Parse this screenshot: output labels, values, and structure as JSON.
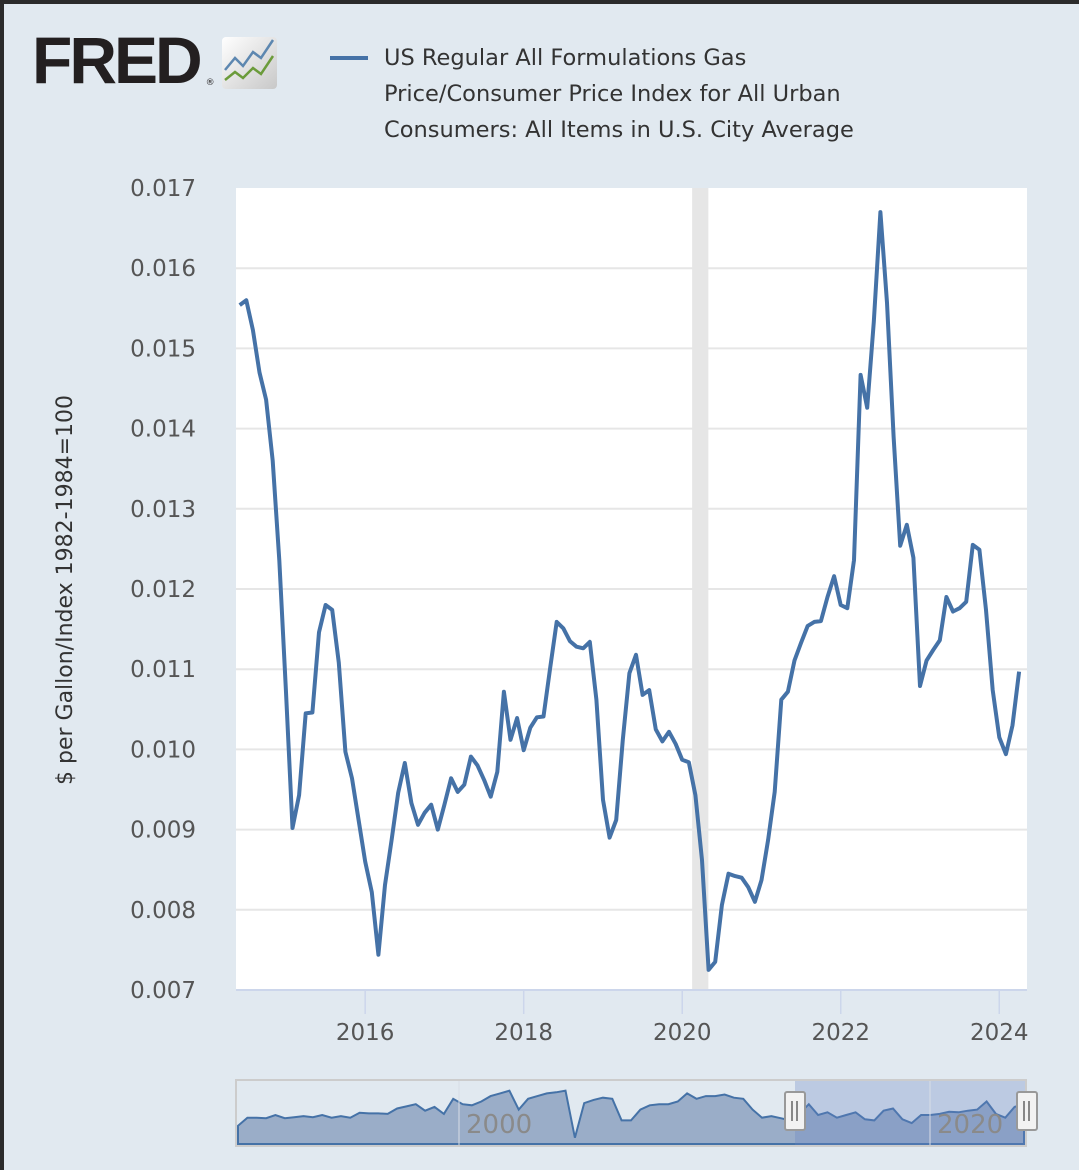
{
  "header": {
    "logo_text": "FRED",
    "logo_registered": "®",
    "logo_icon": "line-chart-icon"
  },
  "legend": {
    "series_label": "US Regular All Formulations Gas Price/Consumer Price Index for All Urban Consumers: All Items in U.S. City Average",
    "series_color": "#4572a7"
  },
  "chart_data": {
    "type": "line",
    "title": "",
    "xlabel": "",
    "ylabel": "$ per Gallon/Index 1982-1984=100",
    "ylim": [
      0.007,
      0.017
    ],
    "xlim": [
      2014.37,
      2024.35
    ],
    "yticks": [
      "0.007",
      "0.008",
      "0.009",
      "0.010",
      "0.011",
      "0.012",
      "0.013",
      "0.014",
      "0.015",
      "0.016",
      "0.017"
    ],
    "ytick_values": [
      0.007,
      0.008,
      0.009,
      0.01,
      0.011,
      0.012,
      0.013,
      0.014,
      0.015,
      0.016,
      0.017
    ],
    "xticks": [
      "2016",
      "2018",
      "2020",
      "2022",
      "2024"
    ],
    "xtick_values": [
      2016,
      2018,
      2020,
      2022,
      2024
    ],
    "grid": true,
    "recession_shading": [
      2020.125,
      2020.33
    ],
    "series": [
      {
        "name": "US Regular All Formulations Gas Price/Consumer Price Index for All Urban Consumers: All Items in U.S. City Average",
        "color": "#4572a7",
        "start": "2014-06",
        "frequency": "monthly",
        "values": [
          0.01554,
          0.0156,
          0.01523,
          0.0147,
          0.01436,
          0.0136,
          0.01236,
          0.01074,
          0.00902,
          0.00943,
          0.01045,
          0.01046,
          0.01146,
          0.0118,
          0.01174,
          0.01108,
          0.00997,
          0.00964,
          0.00912,
          0.0086,
          0.00822,
          0.00744,
          0.00831,
          0.00887,
          0.00946,
          0.00983,
          0.00933,
          0.00906,
          0.00921,
          0.00931,
          0.009,
          0.00931,
          0.00964,
          0.00947,
          0.00956,
          0.00991,
          0.0098,
          0.00962,
          0.00941,
          0.00972,
          0.01072,
          0.01012,
          0.01039,
          0.00999,
          0.01027,
          0.0104,
          0.01041,
          0.01101,
          0.01159,
          0.01151,
          0.01135,
          0.01128,
          0.01126,
          0.01134,
          0.01062,
          0.00937,
          0.0089,
          0.00912,
          0.01012,
          0.01095,
          0.01118,
          0.01068,
          0.01074,
          0.01025,
          0.0101,
          0.01022,
          0.01007,
          0.00987,
          0.00984,
          0.00943,
          0.00862,
          0.00725,
          0.00735,
          0.00806,
          0.00845,
          0.00842,
          0.0084,
          0.00828,
          0.0081,
          0.00837,
          0.00887,
          0.00947,
          0.01062,
          0.01072,
          0.01111,
          0.01133,
          0.01154,
          0.01159,
          0.0116,
          0.0119,
          0.01216,
          0.0118,
          0.01176,
          0.01236,
          0.01467,
          0.01426,
          0.01533,
          0.0167,
          0.01557,
          0.0139,
          0.01254,
          0.0128,
          0.01239,
          0.01079,
          0.01111,
          0.01124,
          0.01136,
          0.0119,
          0.01172,
          0.01176,
          0.01184,
          0.01255,
          0.01249,
          0.01174,
          0.01074,
          0.01015,
          0.00994,
          0.0103,
          0.01097
        ]
      }
    ],
    "navigator": {
      "labels": [
        "2000",
        "2020"
      ],
      "label_values": [
        2000,
        2020
      ],
      "selected_range": [
        2014.37,
        2024.35
      ]
    }
  }
}
